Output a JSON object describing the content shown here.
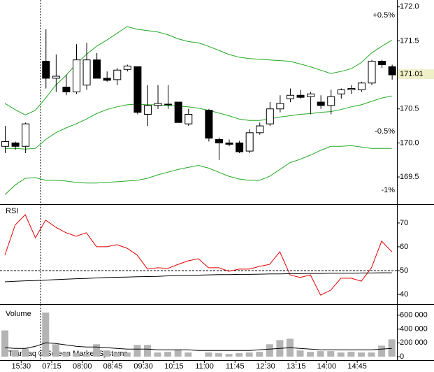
{
  "chart_data": [
    {
      "type": "candlestick",
      "ylim": [
        169.1,
        172.1
      ],
      "yticks": [
        {
          "value": 172,
          "label": "172.0"
        },
        171.5,
        170.5,
        {
          "value": 170,
          "label": "170.0"
        },
        169.5
      ],
      "last_price": 171.01,
      "annotations": [
        {
          "text": "+0.5%",
          "color": "#2a9a2a"
        },
        {
          "text": "-0.5%",
          "color": "#c00000"
        },
        {
          "text": "-1%",
          "color": "#c00000"
        }
      ],
      "open": [
        169.95,
        170.0,
        169.95,
        null,
        171.2,
        170.95,
        170.82,
        170.75,
        170.85,
        171.22,
        170.95,
        170.93,
        171.08,
        171.12,
        170.42,
        170.55,
        170.57,
        170.6,
        170.28,
        null,
        170.48,
        170.05,
        170.0,
        170.0,
        169.88,
        170.15,
        170.28,
        170.5,
        170.65,
        170.7,
        170.68,
        170.6,
        170.55,
        170.72,
        170.78,
        170.78,
        170.88,
        171.2,
        171.12
      ],
      "high": [
        170.25,
        170.02,
        170.3,
        null,
        171.67,
        171.3,
        171.0,
        171.45,
        171.47,
        171.32,
        171.05,
        171.1,
        171.15,
        171.12,
        170.85,
        170.85,
        170.85,
        170.6,
        170.5,
        null,
        170.5,
        170.08,
        170.05,
        170.03,
        170.2,
        170.3,
        170.6,
        170.7,
        170.8,
        170.78,
        170.75,
        170.7,
        170.78,
        170.8,
        170.85,
        170.9,
        171.22,
        171.22,
        171.15
      ],
      "low": [
        169.85,
        169.9,
        169.85,
        null,
        170.8,
        170.75,
        170.7,
        170.72,
        170.78,
        170.95,
        170.9,
        170.85,
        171.05,
        170.42,
        170.25,
        170.5,
        170.5,
        170.3,
        170.25,
        null,
        170.02,
        169.75,
        169.95,
        169.85,
        169.85,
        170.12,
        170.25,
        170.45,
        170.6,
        170.65,
        170.42,
        170.5,
        170.42,
        170.65,
        170.72,
        170.75,
        170.85,
        171.1,
        170.93
      ],
      "close": [
        170.02,
        169.95,
        170.28,
        null,
        170.95,
        170.98,
        170.75,
        171.22,
        171.22,
        170.95,
        170.92,
        171.07,
        171.13,
        170.45,
        170.55,
        170.58,
        170.56,
        170.3,
        170.42,
        null,
        170.07,
        170.0,
        169.98,
        169.87,
        170.15,
        170.25,
        170.5,
        170.58,
        170.7,
        170.67,
        170.72,
        170.55,
        170.68,
        170.78,
        170.8,
        170.88,
        171.2,
        171.15,
        171.0
      ],
      "series": [
        {
          "color": "#22aa22",
          "values": [
            170.58,
            170.49,
            170.41,
            170.48,
            170.66,
            170.85,
            170.99,
            171.16,
            171.3,
            171.42,
            171.51,
            171.61,
            171.71,
            171.67,
            171.65,
            171.63,
            171.59,
            171.53,
            171.49,
            171.47,
            171.42,
            171.36,
            171.3,
            171.26,
            171.24,
            171.23,
            171.22,
            171.21,
            171.2,
            171.16,
            171.12,
            171.07,
            171.02,
            171.05,
            171.09,
            171.18,
            171.32,
            171.42,
            171.51
          ]
        },
        {
          "color": "#22aa22",
          "values": [
            169.92,
            169.92,
            169.91,
            169.92,
            170.05,
            170.15,
            170.22,
            170.28,
            170.35,
            170.43,
            170.49,
            170.53,
            170.56,
            170.57,
            170.56,
            170.56,
            170.55,
            170.54,
            170.53,
            170.51,
            170.48,
            170.44,
            170.4,
            170.35,
            170.33,
            170.33,
            170.35,
            170.38,
            170.4,
            170.42,
            170.43,
            170.45,
            170.46,
            170.49,
            170.53,
            170.56,
            170.61,
            170.66,
            170.69
          ]
        },
        {
          "color": "#22aa22",
          "values": [
            169.24,
            169.38,
            169.48,
            169.49,
            169.45,
            169.45,
            169.44,
            169.42,
            169.41,
            169.41,
            169.42,
            169.43,
            169.44,
            169.45,
            169.48,
            169.53,
            169.57,
            169.61,
            169.64,
            169.67,
            169.63,
            169.57,
            169.51,
            169.47,
            169.45,
            169.45,
            169.51,
            169.61,
            169.71,
            169.76,
            169.82,
            169.89,
            169.95,
            169.95,
            169.96,
            169.94,
            169.92,
            169.92,
            169.92
          ]
        }
      ]
    },
    {
      "type": "line",
      "title": "RSI",
      "ylim": [
        35.9,
        77.6
      ],
      "yticks": [
        40,
        50,
        60,
        70
      ],
      "hline": 50,
      "series": [
        {
          "color": "#e00000",
          "values": [
            56.5,
            69.1,
            73.5,
            63.8,
            71.2,
            68.2,
            65.9,
            64.4,
            65.9,
            60,
            60,
            60.9,
            59.4,
            56.5,
            50.6,
            51.2,
            50.9,
            52.6,
            54.1,
            55,
            51.2,
            51.2,
            49.7,
            50.6,
            50.6,
            51.8,
            52.6,
            57.9,
            48.2,
            47.1,
            48.2,
            39.7,
            41.8,
            46.8,
            46.8,
            45.6,
            51.2,
            62.4,
            57.9
          ]
        },
        {
          "color": "#000000",
          "values": [
            45.3,
            45.5,
            45.7,
            45.8,
            46.0,
            46.2,
            46.4,
            46.6,
            46.7,
            46.9,
            47.1,
            47.2,
            47.3,
            47.4,
            47.5,
            47.6,
            47.8,
            47.9,
            48.0,
            48.1,
            48.2,
            48.3,
            48.3,
            48.4,
            48.4,
            48.5,
            48.6,
            48.6,
            48.7,
            48.7,
            48.8,
            48.8,
            48.9,
            48.9,
            48.9,
            49.0,
            49.0,
            49.1,
            49.1
          ]
        }
      ]
    },
    {
      "type": "bar",
      "title": "Volume",
      "watermark": "Transaq © Screen Market Systems",
      "ylim": [
        -50000,
        740000
      ],
      "yticks": [
        0,
        {
          "value": 200000,
          "label": "200 000"
        },
        {
          "value": 400000,
          "label": "400 000"
        },
        {
          "value": 600000,
          "label": "600 000"
        }
      ],
      "categories": [
        null,
        null,
        "15:30",
        null,
        null,
        "07:15",
        null,
        null,
        "08:00",
        null,
        null,
        "08:45",
        null,
        null,
        "09:30",
        null,
        null,
        "10:15",
        null,
        null,
        "11:00",
        null,
        null,
        "11:45",
        null,
        null,
        "12:30",
        null,
        null,
        "13:15",
        null,
        null,
        "14:00",
        null,
        null,
        "14:45",
        null,
        null,
        null
      ],
      "color": "#b4b4b4",
      "values": [
        380000,
        100000,
        120000,
        null,
        640000,
        180000,
        60000,
        50000,
        40000,
        180000,
        90000,
        60000,
        60000,
        170000,
        170000,
        60000,
        70000,
        100000,
        60000,
        null,
        60000,
        50000,
        40000,
        50000,
        60000,
        70000,
        180000,
        240000,
        260000,
        90000,
        70000,
        80000,
        80000,
        60000,
        70000,
        60000,
        60000,
        160000,
        250000
      ],
      "series": [
        {
          "color": "#000000",
          "values": [
            130000,
            120000,
            120000,
            150000,
            200000,
            190000,
            170000,
            150000,
            140000,
            140000,
            130000,
            120000,
            110000,
            110000,
            110000,
            100000,
            100000,
            100000,
            100000,
            90000,
            90000,
            90000,
            90000,
            90000,
            90000,
            100000,
            110000,
            120000,
            130000,
            120000,
            110000,
            100000,
            100000,
            100000,
            100000,
            100000,
            100000,
            110000,
            120000
          ]
        }
      ]
    }
  ]
}
